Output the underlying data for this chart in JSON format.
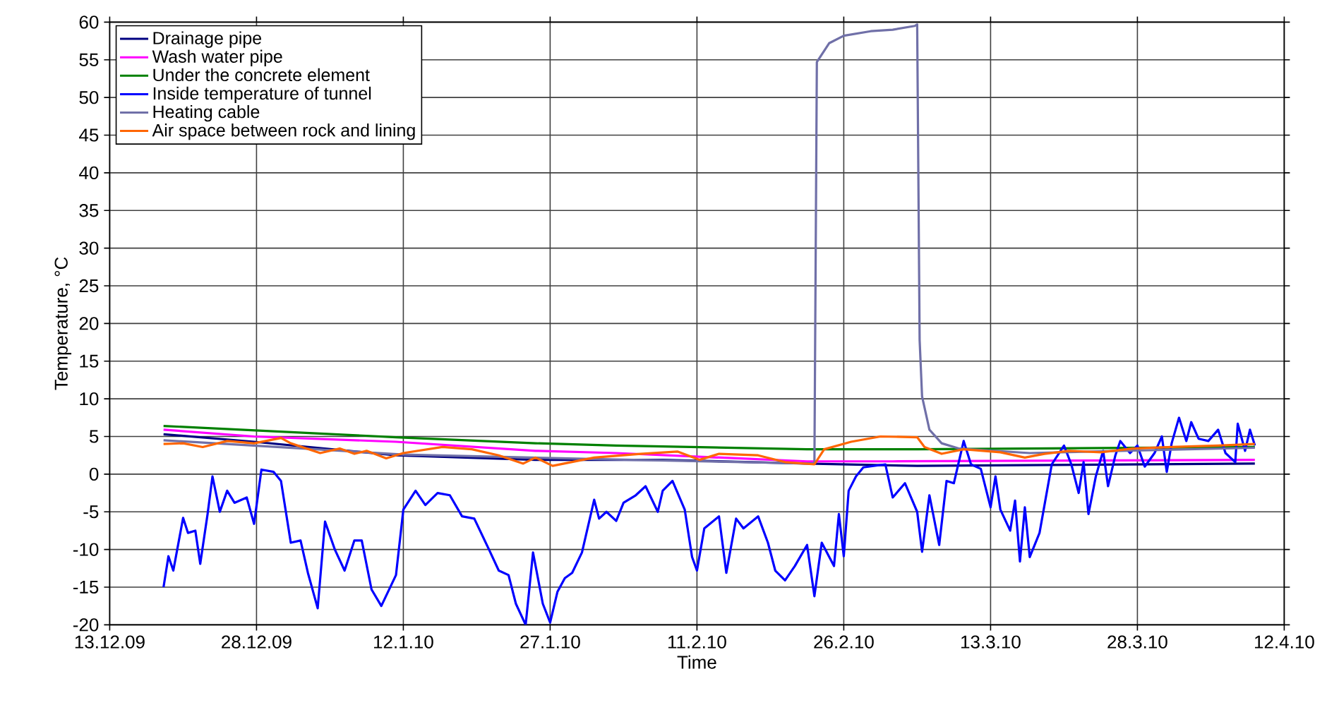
{
  "chart_data": {
    "type": "line",
    "xlabel": "Time",
    "ylabel": "Temperature, °C",
    "xlim": [
      "2009-12-13",
      "2010-04-12"
    ],
    "ylim": [
      -20,
      60
    ],
    "xticks": [
      {
        "value": "2009-12-13",
        "label": "13.12.09"
      },
      {
        "value": "2009-12-28",
        "label": "28.12.09"
      },
      {
        "value": "2010-01-12",
        "label": "12.1.10"
      },
      {
        "value": "2010-01-27",
        "label": "27.1.10"
      },
      {
        "value": "2010-02-11",
        "label": "11.2.10"
      },
      {
        "value": "2010-02-26",
        "label": "26.2.10"
      },
      {
        "value": "2010-03-13",
        "label": "13.3.10"
      },
      {
        "value": "2010-03-28",
        "label": "28.3.10"
      },
      {
        "value": "2010-04-12",
        "label": "12.4.10"
      }
    ],
    "yticks": [
      -20,
      -15,
      -10,
      -5,
      0,
      5,
      10,
      15,
      20,
      25,
      30,
      35,
      40,
      45,
      50,
      55,
      60
    ],
    "grid": true,
    "legend": "top left",
    "series": [
      {
        "name": "Drainage pipe",
        "color": "#000080",
        "x": [
          "2009-12-18T12:00",
          "2009-12-27T18:00",
          "2010-01-11T06:00",
          "2010-01-25T12:00",
          "2010-02-07T12:00",
          "2010-02-22T06:00",
          "2010-03-05T12:00",
          "2010-04-09T00:00"
        ],
        "values": [
          5.3,
          4.3,
          2.5,
          1.9,
          1.9,
          1.4,
          1.1,
          1.4
        ]
      },
      {
        "name": "Wash water pipe",
        "color": "#ff00ff",
        "x": [
          "2009-12-18T12:00",
          "2009-12-27T18:00",
          "2010-01-11T06:00",
          "2010-01-25T12:00",
          "2010-02-02T18:00",
          "2010-02-22T06:00",
          "2010-03-03T00:00",
          "2010-04-09T00:00"
        ],
        "values": [
          5.9,
          5.0,
          4.3,
          3.1,
          2.8,
          1.7,
          1.7,
          1.9
        ]
      },
      {
        "name": "Under the concrete element",
        "color": "#008000",
        "x": [
          "2009-12-18T12:00",
          "2010-01-11T06:00",
          "2010-01-25T12:00",
          "2010-02-02T18:00",
          "2010-02-22T06:00",
          "2010-03-05T12:00",
          "2010-04-09T00:00"
        ],
        "values": [
          6.4,
          4.9,
          4.1,
          3.8,
          3.3,
          3.3,
          3.6
        ]
      },
      {
        "name": "Inside temperature of tunnel",
        "color": "#0000ff",
        "x": [
          "2009-12-18T12:00",
          "2009-12-19T00:00",
          "2009-12-19T12:00",
          "2009-12-20T12:00",
          "2009-12-21T00:00",
          "2009-12-21T18:00",
          "2009-12-22T06:00",
          "2009-12-23T00:00",
          "2009-12-23T12:00",
          "2009-12-24T06:00",
          "2009-12-25T00:00",
          "2009-12-25T18:00",
          "2009-12-27T00:00",
          "2009-12-27T18:00",
          "2009-12-28T12:00",
          "2009-12-29T18:00",
          "2009-12-30T12:00",
          "2009-12-31T12:00",
          "2010-01-01T12:00",
          "2010-01-02T06:00",
          "2010-01-03T06:00",
          "2010-01-04T00:00",
          "2010-01-05T00:00",
          "2010-01-06T00:00",
          "2010-01-07T00:00",
          "2010-01-07T18:00",
          "2010-01-08T18:00",
          "2010-01-09T18:00",
          "2010-01-11T06:00",
          "2010-01-12T00:00",
          "2010-01-13T06:00",
          "2010-01-14T06:00",
          "2010-01-15T12:00",
          "2010-01-16T18:00",
          "2010-01-18T00:00",
          "2010-01-19T06:00",
          "2010-01-20T18:00",
          "2010-01-21T18:00",
          "2010-01-22T18:00",
          "2010-01-23T12:00",
          "2010-01-24T12:00",
          "2010-01-25T06:00",
          "2010-01-26T06:00",
          "2010-01-27T00:00",
          "2010-01-27T18:00",
          "2010-01-28T12:00",
          "2010-01-29T06:00",
          "2010-01-30T06:00",
          "2010-01-31T12:00",
          "2010-02-01T00:00",
          "2010-02-01T18:00",
          "2010-02-02T18:00",
          "2010-02-03T12:00",
          "2010-02-04T18:00",
          "2010-02-05T18:00",
          "2010-02-07T00:00",
          "2010-02-07T12:00",
          "2010-02-08T12:00",
          "2010-02-09T18:00",
          "2010-02-10T12:00",
          "2010-02-11T00:00",
          "2010-02-11T18:00",
          "2010-02-13T06:00",
          "2010-02-14T00:00",
          "2010-02-15T00:00",
          "2010-02-15T18:00",
          "2010-02-17T06:00",
          "2010-02-18T06:00",
          "2010-02-19T00:00",
          "2010-02-20T00:00",
          "2010-02-21T00:00",
          "2010-02-22T06:00",
          "2010-02-23T00:00",
          "2010-02-23T18:00",
          "2010-02-25T00:00",
          "2010-02-25T12:00",
          "2010-02-26T00:00",
          "2010-02-26T12:00",
          "2010-02-27T06:00",
          "2010-02-28T00:00",
          "2010-03-02T06:00",
          "2010-03-03T00:00",
          "2010-03-04T06:00",
          "2010-03-05T12:00",
          "2010-03-06T00:00",
          "2010-03-06T18:00",
          "2010-03-07T18:00",
          "2010-03-08T12:00",
          "2010-03-09T06:00",
          "2010-03-10T06:00",
          "2010-03-11T00:00",
          "2010-03-12T00:00",
          "2010-03-13T00:00",
          "2010-03-13T12:00",
          "2010-03-14T00:00",
          "2010-03-15T00:00",
          "2010-03-15T12:00",
          "2010-03-16T00:00",
          "2010-03-16T12:00",
          "2010-03-17T00:00",
          "2010-03-18T00:00",
          "2010-03-19T06:00",
          "2010-03-20T12:00",
          "2010-03-21T06:00",
          "2010-03-22T00:00",
          "2010-03-22T12:00",
          "2010-03-23T00:00",
          "2010-03-23T18:00",
          "2010-03-24T12:00",
          "2010-03-25T00:00",
          "2010-03-25T18:00",
          "2010-03-26T06:00",
          "2010-03-27T06:00",
          "2010-03-28T00:00",
          "2010-03-28T18:00",
          "2010-03-29T18:00",
          "2010-03-30T12:00",
          "2010-03-31T00:00",
          "2010-03-31T12:00",
          "2010-04-01T06:00",
          "2010-04-02T00:00",
          "2010-04-02T12:00",
          "2010-04-03T06:00",
          "2010-04-04T06:00",
          "2010-04-05T06:00",
          "2010-04-06T00:00",
          "2010-04-07T00:00",
          "2010-04-07T06:00",
          "2010-04-08T00:00",
          "2010-04-08T12:00",
          "2010-04-09T00:00"
        ],
        "values": [
          -15.0,
          -10.9,
          -12.8,
          -5.8,
          -7.8,
          -7.5,
          -11.9,
          -5.3,
          -0.3,
          -5.0,
          -2.2,
          -3.8,
          -3.1,
          -6.6,
          0.6,
          0.3,
          -0.9,
          -9.1,
          -8.8,
          -13.1,
          -17.8,
          -6.3,
          -10.0,
          -12.8,
          -8.8,
          -8.8,
          -15.3,
          -17.5,
          -13.4,
          -4.7,
          -2.2,
          -4.1,
          -2.5,
          -2.8,
          -5.6,
          -5.9,
          -10.0,
          -12.8,
          -13.4,
          -17.2,
          -20.0,
          -10.4,
          -17.2,
          -19.7,
          -15.6,
          -13.8,
          -13.1,
          -10.4,
          -3.4,
          -5.9,
          -5.0,
          -6.2,
          -3.8,
          -2.8,
          -1.6,
          -5.0,
          -2.2,
          -0.9,
          -4.7,
          -11.0,
          -12.8,
          -7.2,
          -5.6,
          -13.1,
          -5.9,
          -7.2,
          -5.6,
          -9.1,
          -12.8,
          -14.1,
          -12.2,
          -9.4,
          -16.2,
          -9.1,
          -12.2,
          -5.3,
          -10.9,
          -2.2,
          -0.3,
          0.9,
          1.3,
          -3.1,
          -1.2,
          -5.0,
          -10.3,
          -2.8,
          -9.4,
          -0.9,
          -1.2,
          4.4,
          1.3,
          0.7,
          -4.4,
          -0.3,
          -4.7,
          -7.5,
          -3.5,
          -11.6,
          -4.4,
          -11.0,
          -7.8,
          1.3,
          3.8,
          1.3,
          -2.5,
          1.6,
          -5.3,
          -0.3,
          3.1,
          -1.6,
          2.5,
          4.4,
          2.8,
          3.8,
          1.0,
          2.8,
          5.0,
          0.3,
          4.1,
          7.5,
          4.4,
          6.9,
          4.7,
          4.4,
          5.9,
          2.8,
          1.6,
          6.7,
          3.1,
          5.9,
          3.8
        ]
      },
      {
        "name": "Heating cable",
        "color": "#7070a8",
        "x": [
          "2009-12-18T12:00",
          "2010-01-12T00:00",
          "2010-02-01T00:00",
          "2010-02-23T00:00",
          "2010-02-23T06:00",
          "2010-02-24T12:00",
          "2010-02-26T00:00",
          "2010-02-28T18:00",
          "2010-03-03T00:00",
          "2010-03-05T06:00",
          "2010-03-05T12:00",
          "2010-03-05T18:00",
          "2010-03-06T00:00",
          "2010-03-06T18:00",
          "2010-03-08T00:00",
          "2010-03-09T18:00",
          "2010-03-17T00:00",
          "2010-04-09T00:00"
        ],
        "values": [
          4.5,
          2.6,
          2.0,
          1.4,
          54.7,
          57.2,
          58.2,
          58.8,
          59.0,
          59.5,
          59.7,
          17.8,
          10.3,
          5.9,
          4.1,
          3.4,
          2.8,
          3.5
        ]
      },
      {
        "name": "Air space between rock and lining",
        "color": "#ff6600",
        "x": [
          "2009-12-18T12:00",
          "2009-12-20T12:00",
          "2009-12-22T12:00",
          "2009-12-25T00:00",
          "2009-12-27T18:00",
          "2009-12-30T12:00",
          "2009-12-31T12:00",
          "2010-01-03T12:00",
          "2010-01-05T12:00",
          "2010-01-07T00:00",
          "2010-01-08T06:00",
          "2010-01-10T06:00",
          "2010-01-12T00:00",
          "2010-01-16T00:00",
          "2010-01-19T00:00",
          "2010-01-21T18:00",
          "2010-01-24T06:00",
          "2010-01-25T12:00",
          "2010-01-27T06:00",
          "2010-01-31T12:00",
          "2010-02-05T06:00",
          "2010-02-09T00:00",
          "2010-02-11T06:00",
          "2010-02-13T06:00",
          "2010-02-17T06:00",
          "2010-02-20T00:00",
          "2010-02-23T00:00",
          "2010-02-24T00:00",
          "2010-02-26T18:00",
          "2010-03-01T18:00",
          "2010-03-05T12:00",
          "2010-03-06T06:00",
          "2010-03-08T00:00",
          "2010-03-10T06:00",
          "2010-03-14T00:00",
          "2010-03-16T12:00",
          "2010-03-18T12:00",
          "2010-03-21T00:00",
          "2010-03-24T06:00",
          "2010-03-27T12:00",
          "2010-03-31T12:00",
          "2010-04-05T06:00",
          "2010-04-09T00:00"
        ],
        "values": [
          4.0,
          4.1,
          3.6,
          4.4,
          4.1,
          4.8,
          4.1,
          2.8,
          3.4,
          2.7,
          3.1,
          2.1,
          2.8,
          3.6,
          3.3,
          2.5,
          1.4,
          2.2,
          1.1,
          2.2,
          2.7,
          3.0,
          1.9,
          2.7,
          2.5,
          1.6,
          1.3,
          3.3,
          4.3,
          5.0,
          4.9,
          3.6,
          2.7,
          3.3,
          2.9,
          2.2,
          2.7,
          3.1,
          2.9,
          3.4,
          3.6,
          3.8,
          4.0
        ]
      }
    ]
  }
}
